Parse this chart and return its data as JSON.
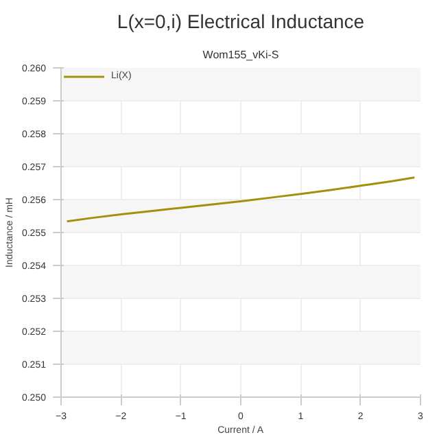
{
  "chart_data": {
    "type": "line",
    "title": "L(x=0,i) Electrical Inductance",
    "subtitle": "Wom155_vKi-S",
    "xlabel": "Current / A",
    "ylabel": "Inductance / mH",
    "x": [
      -2.9,
      -2.5,
      -2,
      -1.5,
      -1,
      -0.5,
      0,
      0.5,
      1,
      1.5,
      2,
      2.5,
      2.9
    ],
    "series": [
      {
        "name": "Li(X)",
        "color": "#a58f0c",
        "values": [
          0.25534,
          0.25544,
          0.25555,
          0.25565,
          0.25575,
          0.25585,
          0.25595,
          0.25606,
          0.25617,
          0.25629,
          0.25642,
          0.25655,
          0.25667
        ]
      }
    ],
    "xlim": [
      -3,
      3
    ],
    "xticks": [
      -3,
      -2,
      -1,
      0,
      1,
      2,
      3
    ],
    "ylim": [
      0.25,
      0.26
    ],
    "yticks": [
      {
        "value": 0.25,
        "label": "0.250"
      },
      {
        "value": 0.251,
        "label": "0.251"
      },
      {
        "value": 0.252,
        "label": "0.252"
      },
      {
        "value": 0.253,
        "label": "0.253"
      },
      {
        "value": 0.254,
        "label": "0.254"
      },
      {
        "value": 0.255,
        "label": "0.255"
      },
      {
        "value": 0.256,
        "label": "0.256"
      },
      {
        "value": 0.257,
        "label": "0.257"
      },
      {
        "value": 0.258,
        "label": "0.258"
      },
      {
        "value": 0.259,
        "label": "0.259"
      },
      {
        "value": 0.26,
        "label": "0.260"
      }
    ],
    "grid": true,
    "legend": "top left",
    "marker": "none",
    "line_style": "solid"
  }
}
